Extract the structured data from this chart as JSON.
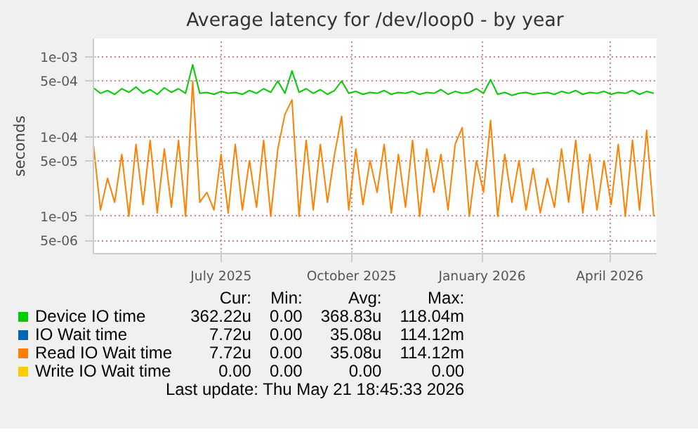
{
  "chart_data": {
    "type": "line",
    "title": "Average latency for /dev/loop0 - by year",
    "ylabel": "seconds",
    "log": "y",
    "grid": true,
    "legend": "bottom",
    "line_style": "solid",
    "marker": "none",
    "xlim": [
      "2025-04-02",
      "2026-05-04"
    ],
    "xticks": [
      {
        "value": "2025-07-01",
        "label": "July 2025"
      },
      {
        "value": "2025-10-01",
        "label": "October 2025"
      },
      {
        "value": "2026-01-01",
        "label": "January 2026"
      },
      {
        "value": "2026-04-01",
        "label": "April 2026"
      }
    ],
    "ylim": [
      3.4e-06,
      0.0017
    ],
    "yticks": [
      {
        "value": 0.001,
        "label": "1e-03"
      },
      {
        "value": 0.0005,
        "label": "5e-04"
      },
      {
        "value": 0.0001,
        "label": "1e-04"
      },
      {
        "value": 5e-05,
        "label": "5e-05"
      },
      {
        "value": 1e-05,
        "label": "1e-05"
      },
      {
        "value": 5e-06,
        "label": "5e-06"
      }
    ],
    "x": [
      "2025-04-02",
      "2025-04-07",
      "2025-04-12",
      "2025-04-17",
      "2025-04-22",
      "2025-04-27",
      "2025-05-02",
      "2025-05-07",
      "2025-05-12",
      "2025-05-17",
      "2025-05-22",
      "2025-05-27",
      "2025-06-01",
      "2025-06-06",
      "2025-06-11",
      "2025-06-16",
      "2025-06-21",
      "2025-06-26",
      "2025-07-01",
      "2025-07-06",
      "2025-07-11",
      "2025-07-16",
      "2025-07-21",
      "2025-07-26",
      "2025-07-31",
      "2025-08-05",
      "2025-08-10",
      "2025-08-15",
      "2025-08-20",
      "2025-08-25",
      "2025-08-30",
      "2025-09-04",
      "2025-09-09",
      "2025-09-14",
      "2025-09-19",
      "2025-09-24",
      "2025-09-29",
      "2025-10-04",
      "2025-10-09",
      "2025-10-14",
      "2025-10-19",
      "2025-10-24",
      "2025-10-29",
      "2025-11-03",
      "2025-11-08",
      "2025-11-13",
      "2025-11-18",
      "2025-11-23",
      "2025-11-28",
      "2025-12-03",
      "2025-12-08",
      "2025-12-13",
      "2025-12-18",
      "2025-12-23",
      "2025-12-28",
      "2026-01-02",
      "2026-01-07",
      "2026-01-12",
      "2026-01-17",
      "2026-01-22",
      "2026-01-27",
      "2026-02-01",
      "2026-02-06",
      "2026-02-11",
      "2026-02-16",
      "2026-02-21",
      "2026-02-26",
      "2026-03-03",
      "2026-03-08",
      "2026-03-13",
      "2026-03-18",
      "2026-03-23",
      "2026-03-28",
      "2026-04-02",
      "2026-04-07",
      "2026-04-12",
      "2026-04-17",
      "2026-04-22",
      "2026-04-27",
      "2026-05-02"
    ],
    "series": [
      {
        "name": "Device IO time",
        "color": "#00cc00",
        "values": [
          0.00041,
          0.00035,
          0.00038,
          0.00034,
          0.0004,
          0.00036,
          0.00042,
          0.00035,
          0.00039,
          0.00034,
          0.00041,
          0.00036,
          0.0004,
          0.00035,
          0.0008,
          0.00035,
          0.00036,
          0.00034,
          0.00037,
          0.00035,
          0.00036,
          0.00034,
          0.00038,
          0.00035,
          0.0004,
          0.00036,
          0.0005,
          0.00035,
          0.00067,
          0.00036,
          0.0004,
          0.00035,
          0.00039,
          0.00034,
          0.00038,
          0.0005,
          0.00035,
          0.00037,
          0.00034,
          0.00036,
          0.00035,
          0.00038,
          0.00034,
          0.00036,
          0.00035,
          0.00037,
          0.00034,
          0.00036,
          0.00035,
          0.00039,
          0.00034,
          0.00037,
          0.00035,
          0.00036,
          0.0004,
          0.00035,
          0.00052,
          0.00034,
          0.00036,
          0.00033,
          0.00035,
          0.00036,
          0.00034,
          0.00035,
          0.00036,
          0.00034,
          0.00037,
          0.00035,
          0.00038,
          0.00034,
          0.00036,
          0.00035,
          0.00037,
          0.00034,
          0.00036,
          0.00035,
          0.00038,
          0.00034,
          0.00037,
          0.00035
        ]
      },
      {
        "name": "IO Wait time",
        "color": "#0066b3",
        "values": [
          null,
          null,
          null,
          null,
          null,
          null,
          null,
          null,
          null,
          null,
          null,
          null,
          null,
          null,
          null,
          null,
          null,
          null,
          null,
          null,
          null,
          null,
          null,
          null,
          null,
          null,
          null,
          null,
          null,
          null,
          null,
          null,
          null,
          null,
          null,
          null,
          null,
          null,
          null,
          null,
          null,
          null,
          null,
          null,
          null,
          null,
          null,
          null,
          null,
          null,
          null,
          null,
          null,
          null,
          null,
          null,
          null,
          null,
          null,
          null,
          null,
          null,
          null,
          null,
          null,
          null,
          null,
          null,
          null,
          null,
          null,
          null,
          null,
          null,
          null,
          null,
          null,
          null,
          null,
          null
        ]
      },
      {
        "name": "Read IO Wait time",
        "color": "#ff8000",
        "values": [
          8e-05,
          1.2e-05,
          3e-05,
          1.5e-05,
          6e-05,
          1e-05,
          8e-05,
          1.4e-05,
          9e-05,
          1.1e-05,
          7e-05,
          1.3e-05,
          9e-05,
          1e-05,
          0.0005,
          1.5e-05,
          2e-05,
          1.2e-05,
          6e-05,
          1.1e-05,
          8e-05,
          1.2e-05,
          5e-05,
          1.3e-05,
          9e-05,
          1e-05,
          7e-05,
          0.00019,
          0.00029,
          1e-05,
          9e-05,
          1.2e-05,
          8e-05,
          1.5e-05,
          6e-05,
          0.00018,
          1.2e-05,
          7e-05,
          1.4e-05,
          5e-05,
          2e-05,
          8e-05,
          1.1e-05,
          6e-05,
          1.3e-05,
          9e-05,
          1e-05,
          7e-05,
          2e-05,
          6e-05,
          1.2e-05,
          8e-05,
          0.00013,
          1e-05,
          5e-05,
          2e-05,
          0.00016,
          1e-05,
          6e-05,
          1.5e-05,
          5e-05,
          1.2e-05,
          4e-05,
          1.1e-05,
          3e-05,
          1.3e-05,
          7e-05,
          1.5e-05,
          9e-05,
          1.1e-05,
          6e-05,
          1.2e-05,
          5e-05,
          1.4e-05,
          8e-05,
          1e-05,
          9e-05,
          1.2e-05,
          0.00012,
          1e-05
        ]
      },
      {
        "name": "Write IO Wait time",
        "color": "#ffcc00",
        "values": [
          null,
          null,
          null,
          null,
          null,
          null,
          null,
          null,
          null,
          null,
          null,
          null,
          null,
          null,
          null,
          null,
          null,
          null,
          null,
          null,
          null,
          null,
          null,
          null,
          null,
          null,
          null,
          null,
          null,
          null,
          null,
          null,
          null,
          null,
          null,
          null,
          null,
          null,
          null,
          null,
          null,
          null,
          null,
          null,
          null,
          null,
          null,
          null,
          null,
          null,
          null,
          null,
          null,
          null,
          null,
          null,
          null,
          null,
          null,
          null,
          null,
          null,
          null,
          null,
          null,
          null,
          null,
          null,
          null,
          null,
          null,
          null,
          null,
          null,
          null,
          null,
          null,
          null,
          null,
          null
        ]
      }
    ],
    "annotations": [
      "Cur:",
      "Min:",
      "Avg:",
      "Max:",
      "362.22u",
      "0.00",
      "368.83u",
      "118.04m",
      "7.72u",
      "0.00",
      "35.08u",
      "114.12m",
      "7.72u",
      "0.00",
      "35.08u",
      "114.12m",
      "0.00",
      "0.00",
      "0.00",
      "0.00",
      "Last update: Thu May 21 18:45:33 2026"
    ]
  }
}
